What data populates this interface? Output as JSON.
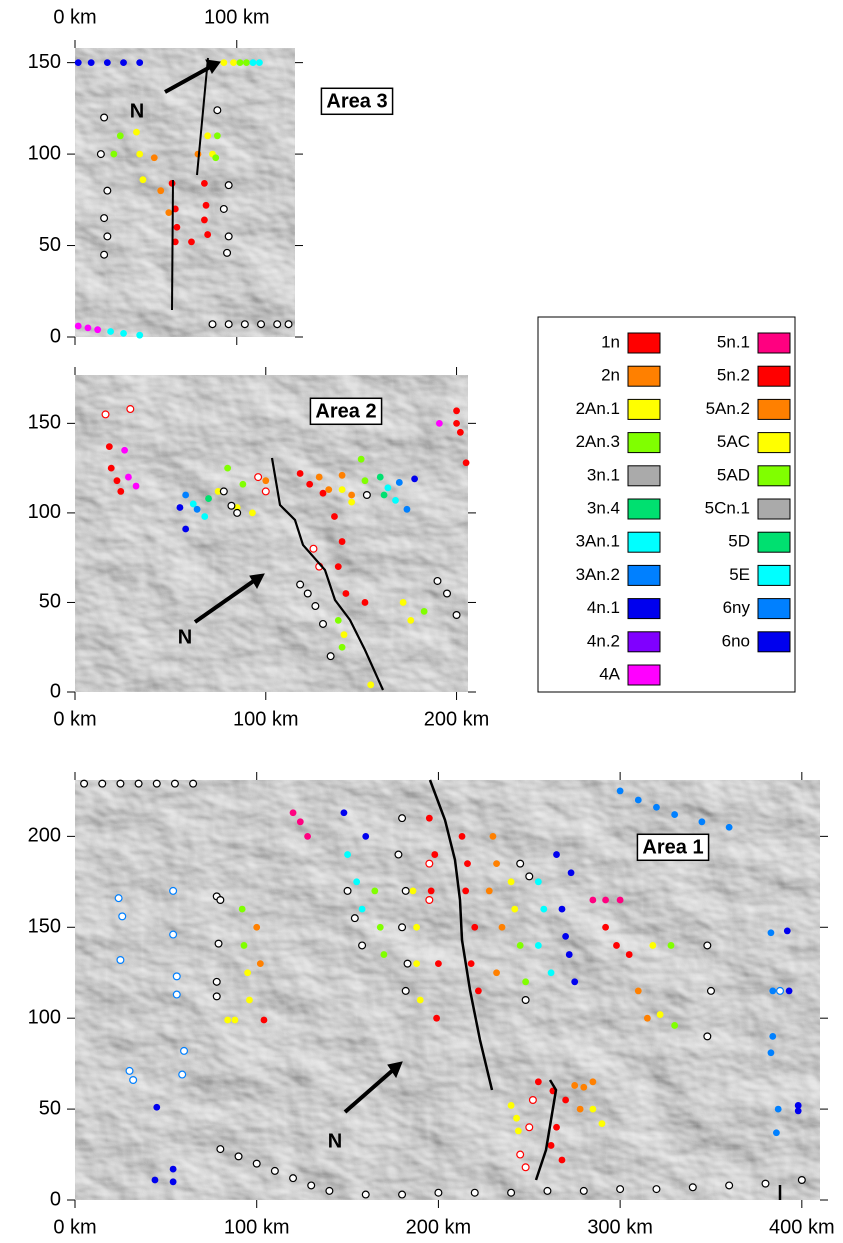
{
  "chart_data": [
    {
      "type": "scatter",
      "title": "Area 3",
      "annotation": "N",
      "xlim": [
        0,
        136
      ],
      "ylim": [
        0,
        158
      ],
      "xticks": [
        {
          "value": 0,
          "label": "0 km"
        },
        {
          "value": 100,
          "label": "100 km"
        }
      ],
      "yticks": [
        0,
        50,
        100,
        150
      ],
      "series": [
        {
          "color": "#ff0000",
          "filled": true,
          "x": [
            60,
            62,
            63,
            62,
            80,
            81,
            80,
            82,
            72
          ],
          "values": [
            84,
            70,
            60,
            52,
            84,
            72,
            64,
            56,
            52
          ]
        },
        {
          "color": "#ff8000",
          "filled": true,
          "x": [
            49,
            53,
            58,
            76
          ],
          "values": [
            98,
            80,
            68,
            100
          ]
        },
        {
          "color": "#ffff00",
          "filled": true,
          "x": [
            38,
            40,
            42,
            82,
            85
          ],
          "values": [
            112,
            100,
            86,
            110,
            100
          ]
        },
        {
          "color": "#80ff00",
          "filled": true,
          "x": [
            28,
            24,
            88,
            87
          ],
          "values": [
            110,
            100,
            110,
            98
          ]
        },
        {
          "color": "#000000",
          "filled": false,
          "x": [
            18,
            16,
            20,
            18,
            20,
            18,
            88,
            95,
            92,
            95,
            94
          ],
          "values": [
            120,
            100,
            80,
            65,
            55,
            45,
            124,
            83,
            70,
            55,
            46
          ]
        },
        {
          "color": "#0000ee",
          "filled": true,
          "x": [
            2,
            10,
            20,
            30,
            40
          ],
          "values": [
            150,
            150,
            150,
            150,
            150
          ]
        },
        {
          "color": "#ff00ff",
          "filled": true,
          "x": [
            2,
            8,
            14
          ],
          "values": [
            6,
            5,
            4
          ]
        },
        {
          "color": "#00ffff",
          "filled": true,
          "x": [
            22,
            30,
            40
          ],
          "values": [
            3,
            2,
            1
          ]
        },
        {
          "color": "#ffff00",
          "filled": true,
          "x": [
            92,
            98
          ],
          "values": [
            150,
            150
          ]
        },
        {
          "color": "#80ff00",
          "filled": true,
          "x": [
            102,
            106
          ],
          "values": [
            150,
            150
          ]
        },
        {
          "color": "#00ffff",
          "filled": true,
          "x": [
            110,
            114
          ],
          "values": [
            150,
            150
          ]
        },
        {
          "color": "#ffffff",
          "filled": false,
          "x": [
            85,
            95,
            105,
            115,
            125,
            132
          ],
          "values": [
            7,
            7,
            7,
            7,
            7,
            7
          ]
        }
      ]
    },
    {
      "type": "scatter",
      "title": "Area 2",
      "annotation": "N",
      "xlim": [
        0,
        206
      ],
      "ylim": [
        0,
        177
      ],
      "xticks": [
        {
          "value": 0,
          "label": "0 km"
        },
        {
          "value": 100,
          "label": "100 km"
        },
        {
          "value": 200,
          "label": "200 km"
        }
      ],
      "yticks": [
        0,
        50,
        100,
        150
      ],
      "series": [
        {
          "color": "#ff0000",
          "filled": true,
          "x": [
            18,
            19,
            22,
            24,
            118,
            123,
            130,
            136,
            140,
            138,
            142,
            152,
            200,
            202,
            205,
            200
          ],
          "values": [
            137,
            125,
            118,
            112,
            122,
            116,
            111,
            98,
            84,
            70,
            55,
            50,
            157,
            145,
            128,
            150
          ]
        },
        {
          "color": "#ff00ff",
          "filled": true,
          "x": [
            26,
            28,
            32,
            191
          ],
          "values": [
            135,
            120,
            115,
            150
          ]
        },
        {
          "color": "#ff8000",
          "filled": true,
          "x": [
            100,
            128,
            133,
            140,
            145
          ],
          "values": [
            118,
            120,
            113,
            121,
            110
          ]
        },
        {
          "color": "#ffff00",
          "filled": true,
          "x": [
            75,
            85,
            93,
            140,
            145,
            172,
            176,
            141,
            155
          ],
          "values": [
            112,
            103,
            100,
            113,
            106,
            50,
            40,
            32,
            4
          ]
        },
        {
          "color": "#80ff00",
          "filled": true,
          "x": [
            80,
            88,
            150,
            152,
            183,
            138,
            140
          ],
          "values": [
            125,
            116,
            130,
            118,
            45,
            40,
            25
          ]
        },
        {
          "color": "#00e070",
          "filled": true,
          "x": [
            70,
            160,
            162
          ],
          "values": [
            108,
            120,
            110
          ]
        },
        {
          "color": "#00ffff",
          "filled": true,
          "x": [
            62,
            68,
            164,
            168
          ],
          "values": [
            105,
            98,
            114,
            107
          ]
        },
        {
          "color": "#0080ff",
          "filled": true,
          "x": [
            58,
            64,
            170,
            174
          ],
          "values": [
            110,
            102,
            117,
            102
          ]
        },
        {
          "color": "#0000ee",
          "filled": true,
          "x": [
            55,
            58,
            178
          ],
          "values": [
            103,
            91,
            119
          ]
        },
        {
          "color": "#000000",
          "filled": false,
          "x": [
            78,
            82,
            85,
            118,
            122,
            126,
            130,
            134,
            190,
            195,
            200,
            153
          ],
          "values": [
            112,
            104,
            100,
            60,
            55,
            48,
            38,
            20,
            62,
            55,
            43,
            110
          ]
        },
        {
          "color": "#ff0000",
          "filled": false,
          "x": [
            16,
            29,
            96,
            100,
            125,
            128
          ],
          "values": [
            155,
            158,
            120,
            112,
            80,
            70
          ]
        }
      ]
    },
    {
      "type": "scatter",
      "title": "Area 1",
      "annotation": "N",
      "xlim": [
        0,
        410
      ],
      "ylim": [
        0,
        231
      ],
      "xticks": [
        {
          "value": 0,
          "label": "0 km"
        },
        {
          "value": 100,
          "label": "100 km"
        },
        {
          "value": 200,
          "label": "200 km"
        },
        {
          "value": 300,
          "label": "300 km"
        },
        {
          "value": 400,
          "label": "400 km"
        }
      ],
      "yticks": [
        0,
        50,
        100,
        150,
        200
      ],
      "series": [
        {
          "color": "#0080ff",
          "filled": false,
          "x": [
            24,
            26,
            25,
            30,
            32,
            54,
            54,
            56,
            56,
            60,
            59,
            388
          ],
          "values": [
            166,
            156,
            132,
            71,
            66,
            170,
            146,
            123,
            113,
            82,
            69,
            115
          ]
        },
        {
          "color": "#0000ee",
          "filled": true,
          "x": [
            45,
            44,
            54,
            54,
            148,
            160,
            268,
            270,
            272,
            275,
            265,
            273,
            392,
            393,
            398,
            398
          ],
          "values": [
            51,
            11,
            17,
            10,
            213,
            200,
            160,
            145,
            135,
            120,
            190,
            180,
            148,
            115,
            52,
            49
          ]
        },
        {
          "color": "#0080ff",
          "filled": true,
          "x": [
            383,
            384,
            384,
            383,
            387,
            386,
            300,
            310,
            320,
            330,
            345,
            360
          ],
          "values": [
            147,
            115,
            90,
            81,
            50,
            37,
            225,
            220,
            216,
            212,
            208,
            205
          ]
        },
        {
          "color": "#000000",
          "filled": false,
          "x": [
            78,
            80,
            79,
            78,
            78,
            180,
            178,
            182,
            180,
            183,
            182,
            245,
            250,
            248,
            348,
            350,
            348,
            80,
            90,
            100,
            110,
            120,
            130,
            140,
            160,
            180,
            200,
            220,
            240
          ],
          "values": [
            167,
            165,
            141,
            120,
            112,
            210,
            190,
            170,
            150,
            130,
            115,
            185,
            178,
            110,
            140,
            115,
            90,
            28,
            24,
            20,
            16,
            12,
            8,
            5,
            3,
            3,
            4,
            4,
            4
          ]
        },
        {
          "color": "#ffff00",
          "filled": true,
          "x": [
            84,
            88,
            95,
            96,
            186,
            188,
            188,
            190,
            240,
            242,
            318,
            322,
            240,
            243,
            244,
            285,
            290
          ],
          "values": [
            99,
            99,
            125,
            110,
            170,
            150,
            130,
            110,
            175,
            160,
            140,
            102,
            52,
            45,
            38,
            50,
            42
          ]
        },
        {
          "color": "#80ff00",
          "filled": true,
          "x": [
            92,
            93,
            165,
            168,
            170,
            245,
            248,
            328,
            330
          ],
          "values": [
            160,
            140,
            170,
            150,
            135,
            140,
            120,
            140,
            96
          ]
        },
        {
          "color": "#ff8000",
          "filled": true,
          "x": [
            100,
            102,
            230,
            232,
            228,
            235,
            232,
            310,
            315,
            275,
            280,
            278,
            285
          ],
          "values": [
            150,
            130,
            200,
            185,
            170,
            150,
            125,
            115,
            100,
            63,
            62,
            50,
            65
          ]
        },
        {
          "color": "#ff0000",
          "filled": true,
          "x": [
            104,
            195,
            198,
            196,
            200,
            199,
            213,
            216,
            215,
            220,
            218,
            222,
            292,
            298,
            305,
            255,
            263,
            270,
            265,
            262,
            268
          ],
          "values": [
            99,
            210,
            190,
            170,
            130,
            100,
            200,
            185,
            170,
            150,
            130,
            115,
            150,
            140,
            135,
            65,
            60,
            55,
            40,
            30,
            22
          ]
        },
        {
          "color": "#ff0080",
          "filled": true,
          "x": [
            120,
            124,
            128,
            285,
            292,
            300
          ],
          "values": [
            213,
            208,
            200,
            165,
            165,
            165
          ]
        },
        {
          "color": "#00ffff",
          "filled": true,
          "x": [
            150,
            155,
            158,
            255,
            258,
            255,
            262
          ],
          "values": [
            190,
            175,
            160,
            175,
            160,
            140,
            125
          ]
        },
        {
          "color": "#ff0000",
          "filled": false,
          "x": [
            195,
            195,
            252,
            250,
            245,
            248
          ],
          "values": [
            185,
            165,
            55,
            40,
            25,
            18
          ]
        },
        {
          "color": "#ffffff",
          "filled": false,
          "x": [
            150,
            154,
            158,
            5,
            15,
            25,
            35,
            45,
            55,
            65,
            260,
            280,
            300,
            320,
            340,
            360,
            380,
            400
          ],
          "values": [
            170,
            155,
            140,
            229,
            229,
            229,
            229,
            229,
            229,
            229,
            5,
            5,
            6,
            6,
            7,
            8,
            9,
            11
          ]
        }
      ]
    }
  ],
  "legend": {
    "items": [
      {
        "name": "1n",
        "color": "#ff0000"
      },
      {
        "name": "2n",
        "color": "#ff8000"
      },
      {
        "name": "2An.1",
        "color": "#ffff00"
      },
      {
        "name": "2An.3",
        "color": "#80ff00"
      },
      {
        "name": "3n.1",
        "color": "#aaaaaa"
      },
      {
        "name": "3n.4",
        "color": "#00e070"
      },
      {
        "name": "3An.1",
        "color": "#00ffff"
      },
      {
        "name": "3An.2",
        "color": "#0080ff"
      },
      {
        "name": "4n.1",
        "color": "#0000ee"
      },
      {
        "name": "4n.2",
        "color": "#8000ff"
      },
      {
        "name": "4A",
        "color": "#ff00ff"
      },
      {
        "name": "5n.1",
        "color": "#ff0080"
      },
      {
        "name": "5n.2",
        "color": "#ff0000"
      },
      {
        "name": "5An.2",
        "color": "#ff8000"
      },
      {
        "name": "5AC",
        "color": "#ffff00"
      },
      {
        "name": "5AD",
        "color": "#80ff00"
      },
      {
        "name": "5Cn.1",
        "color": "#aaaaaa"
      },
      {
        "name": "5D",
        "color": "#00e070"
      },
      {
        "name": "5E",
        "color": "#00ffff"
      },
      {
        "name": "6ny",
        "color": "#0080ff"
      },
      {
        "name": "6no",
        "color": "#0000ee"
      }
    ]
  }
}
